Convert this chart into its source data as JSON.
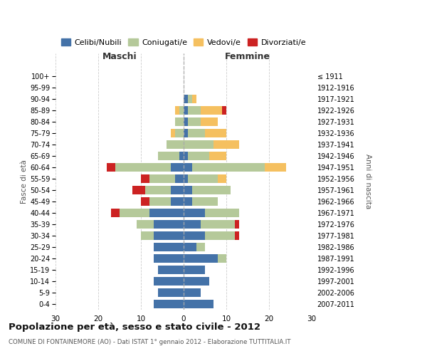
{
  "age_groups": [
    "0-4",
    "5-9",
    "10-14",
    "15-19",
    "20-24",
    "25-29",
    "30-34",
    "35-39",
    "40-44",
    "45-49",
    "50-54",
    "55-59",
    "60-64",
    "65-69",
    "70-74",
    "75-79",
    "80-84",
    "85-89",
    "90-94",
    "95-99",
    "100+"
  ],
  "birth_years": [
    "2007-2011",
    "2002-2006",
    "1997-2001",
    "1992-1996",
    "1987-1991",
    "1982-1986",
    "1977-1981",
    "1972-1976",
    "1967-1971",
    "1962-1966",
    "1957-1961",
    "1952-1956",
    "1947-1951",
    "1942-1946",
    "1937-1941",
    "1932-1936",
    "1927-1931",
    "1922-1926",
    "1917-1921",
    "1912-1916",
    "≤ 1911"
  ],
  "males": {
    "celibi": [
      7,
      6,
      7,
      6,
      7,
      7,
      7,
      7,
      8,
      3,
      3,
      2,
      3,
      1,
      0,
      0,
      0,
      0,
      0,
      0,
      0
    ],
    "coniugati": [
      0,
      0,
      0,
      0,
      0,
      0,
      3,
      4,
      7,
      5,
      6,
      6,
      13,
      5,
      4,
      2,
      2,
      1,
      0,
      0,
      0
    ],
    "vedovi": [
      0,
      0,
      0,
      0,
      0,
      0,
      0,
      0,
      0,
      0,
      0,
      0,
      0,
      0,
      0,
      1,
      0,
      1,
      0,
      0,
      0
    ],
    "divorziati": [
      0,
      0,
      0,
      0,
      0,
      0,
      0,
      0,
      2,
      2,
      3,
      2,
      2,
      0,
      0,
      0,
      0,
      0,
      0,
      0,
      0
    ]
  },
  "females": {
    "nubili": [
      7,
      4,
      6,
      5,
      8,
      3,
      5,
      4,
      5,
      2,
      2,
      1,
      2,
      1,
      0,
      1,
      1,
      1,
      1,
      0,
      0
    ],
    "coniugate": [
      0,
      0,
      0,
      0,
      2,
      2,
      7,
      8,
      8,
      6,
      9,
      7,
      17,
      5,
      7,
      4,
      3,
      3,
      1,
      0,
      0
    ],
    "vedove": [
      0,
      0,
      0,
      0,
      0,
      0,
      0,
      0,
      0,
      0,
      0,
      2,
      5,
      4,
      6,
      5,
      4,
      5,
      1,
      0,
      0
    ],
    "divorziate": [
      0,
      0,
      0,
      0,
      0,
      0,
      1,
      1,
      0,
      0,
      0,
      0,
      0,
      0,
      0,
      0,
      0,
      1,
      0,
      0,
      0
    ]
  },
  "colors": {
    "celibi": "#4472a8",
    "coniugati": "#b5c99a",
    "vedovi": "#f5c060",
    "divorziati": "#cc2222"
  },
  "xlim": 30,
  "title": "Popolazione per età, sesso e stato civile - 2012",
  "subtitle": "COMUNE DI FONTAINEMORE (AO) - Dati ISTAT 1° gennaio 2012 - Elaborazione TUTTITALIA.IT",
  "ylabel_left": "Fasce di età",
  "ylabel_right": "Anni di nascita",
  "xlabel_left": "Maschi",
  "xlabel_right": "Femmine",
  "legend_labels": [
    "Celibi/Nubili",
    "Coniugati/e",
    "Vedovi/e",
    "Divorziati/e"
  ]
}
